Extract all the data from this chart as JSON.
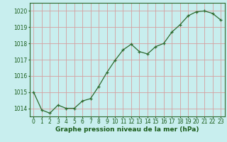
{
  "x": [
    0,
    1,
    2,
    3,
    4,
    5,
    6,
    7,
    8,
    9,
    10,
    11,
    12,
    13,
    14,
    15,
    16,
    17,
    18,
    19,
    20,
    21,
    22,
    23
  ],
  "y": [
    1015.0,
    1013.9,
    1013.7,
    1014.2,
    1014.0,
    1014.0,
    1014.45,
    1014.6,
    1015.35,
    1016.2,
    1016.95,
    1017.6,
    1017.95,
    1017.5,
    1017.35,
    1017.8,
    1018.0,
    1018.7,
    1019.15,
    1019.7,
    1019.95,
    1020.0,
    1019.85,
    1019.45
  ],
  "line_color": "#2d6a2d",
  "marker": "+",
  "markersize": 3.5,
  "linewidth": 0.9,
  "background_color": "#c8eeee",
  "grid_color": "#d4a0a0",
  "xlabel": "Graphe pression niveau de la mer (hPa)",
  "xlabel_color": "#1a5c1a",
  "xlabel_fontsize": 6.5,
  "tick_color": "#1a5c1a",
  "tick_fontsize": 5.5,
  "ylim": [
    1013.5,
    1020.5
  ],
  "yticks": [
    1014,
    1015,
    1016,
    1017,
    1018,
    1019,
    1020
  ],
  "xlim": [
    -0.5,
    23.5
  ],
  "xticks": [
    0,
    1,
    2,
    3,
    4,
    5,
    6,
    7,
    8,
    9,
    10,
    11,
    12,
    13,
    14,
    15,
    16,
    17,
    18,
    19,
    20,
    21,
    22,
    23
  ]
}
